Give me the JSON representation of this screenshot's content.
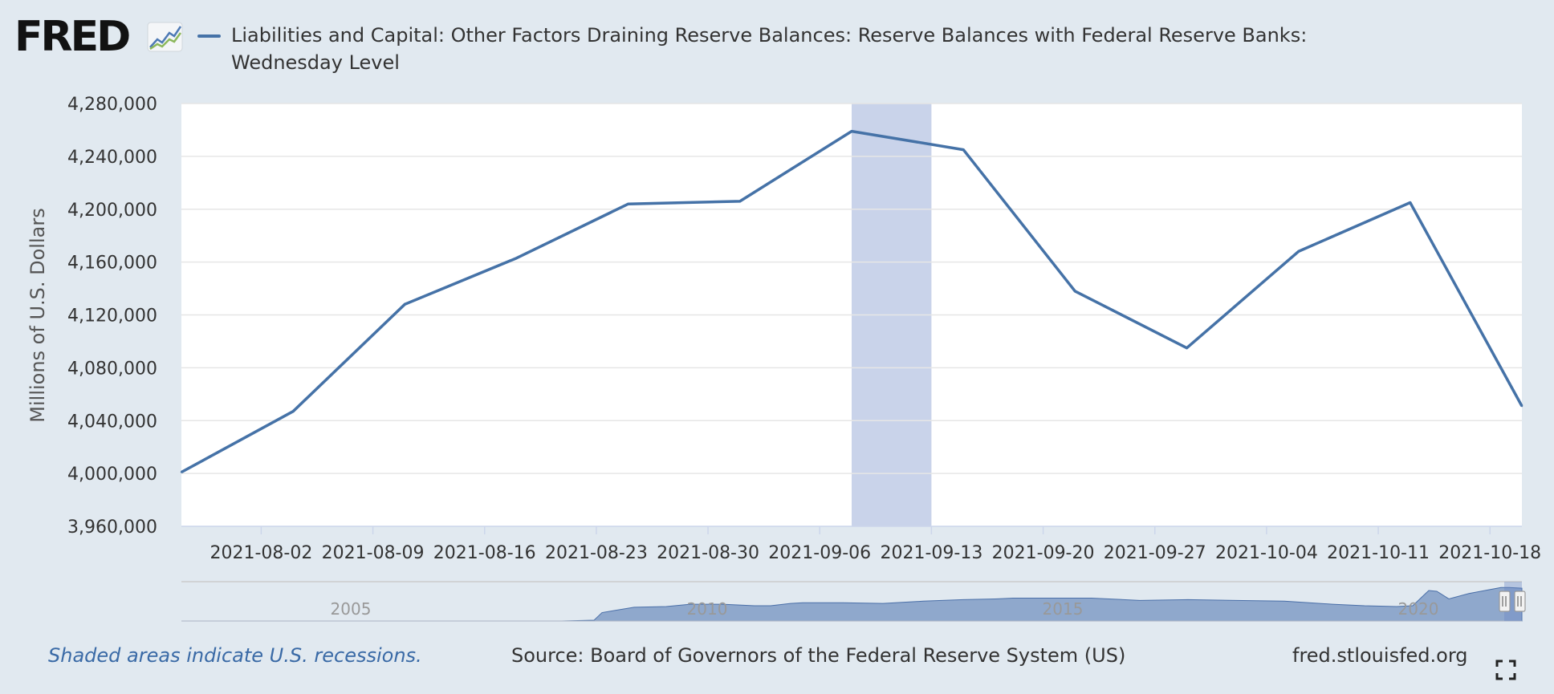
{
  "header": {
    "logo_text": "FRED",
    "logo_icon": "line-chart-icon",
    "title": "Liabilities and Capital: Other Factors Draining Reserve Balances: Reserve Balances with Federal Reserve Banks: Wednesday Level"
  },
  "colors": {
    "series": "#4572a7",
    "recession": "#c9d3ea",
    "background": "#e1e9f0",
    "navigator_fill": "#8fa8cc"
  },
  "chart_data": {
    "type": "line",
    "title": "Liabilities and Capital: Other Factors Draining Reserve Balances: Reserve Balances with Federal Reserve Banks: Wednesday Level",
    "xlabel": "",
    "ylabel": "Millions of U.S. Dollars",
    "ylim": [
      3960000,
      4280000
    ],
    "y_ticks": [
      3960000,
      4000000,
      4040000,
      4080000,
      4120000,
      4160000,
      4200000,
      4240000,
      4280000
    ],
    "y_tick_labels": [
      "3,960,000",
      "4,000,000",
      "4,040,000",
      "4,080,000",
      "4,120,000",
      "4,160,000",
      "4,200,000",
      "4,240,000",
      "4,280,000"
    ],
    "xlim": [
      "2021-07-28",
      "2021-10-20"
    ],
    "x_ticks": [
      "2021-08-02",
      "2021-08-09",
      "2021-08-16",
      "2021-08-23",
      "2021-08-30",
      "2021-09-06",
      "2021-09-13",
      "2021-09-20",
      "2021-09-27",
      "2021-10-04",
      "2021-10-11",
      "2021-10-18"
    ],
    "grid": true,
    "series": [
      {
        "name": "Liabilities and Capital: Other Factors Draining Reserve Balances: Reserve Balances with Federal Reserve Banks: Wednesday Level",
        "x": [
          "2021-07-28",
          "2021-08-04",
          "2021-08-11",
          "2021-08-18",
          "2021-08-25",
          "2021-09-01",
          "2021-09-08",
          "2021-09-15",
          "2021-09-22",
          "2021-09-29",
          "2021-10-06",
          "2021-10-13",
          "2021-10-20"
        ],
        "y": [
          4001000,
          4047000,
          4128000,
          4163000,
          4204000,
          4206000,
          4259000,
          4245000,
          4138000,
          4095000,
          4168000,
          4205000,
          4051000
        ]
      }
    ],
    "recession_shading": [
      {
        "start": "2021-09-08",
        "end": "2021-09-13"
      }
    ],
    "navigator": {
      "labels": [
        "2005",
        "2010",
        "2015",
        "2020"
      ]
    }
  },
  "footer": {
    "recession_note": "Shaded areas indicate U.S. recessions.",
    "source": "Source: Board of Governors of the Federal Reserve System (US)",
    "site": "fred.stlouisfed.org",
    "fullscreen_icon": "fullscreen-icon"
  }
}
